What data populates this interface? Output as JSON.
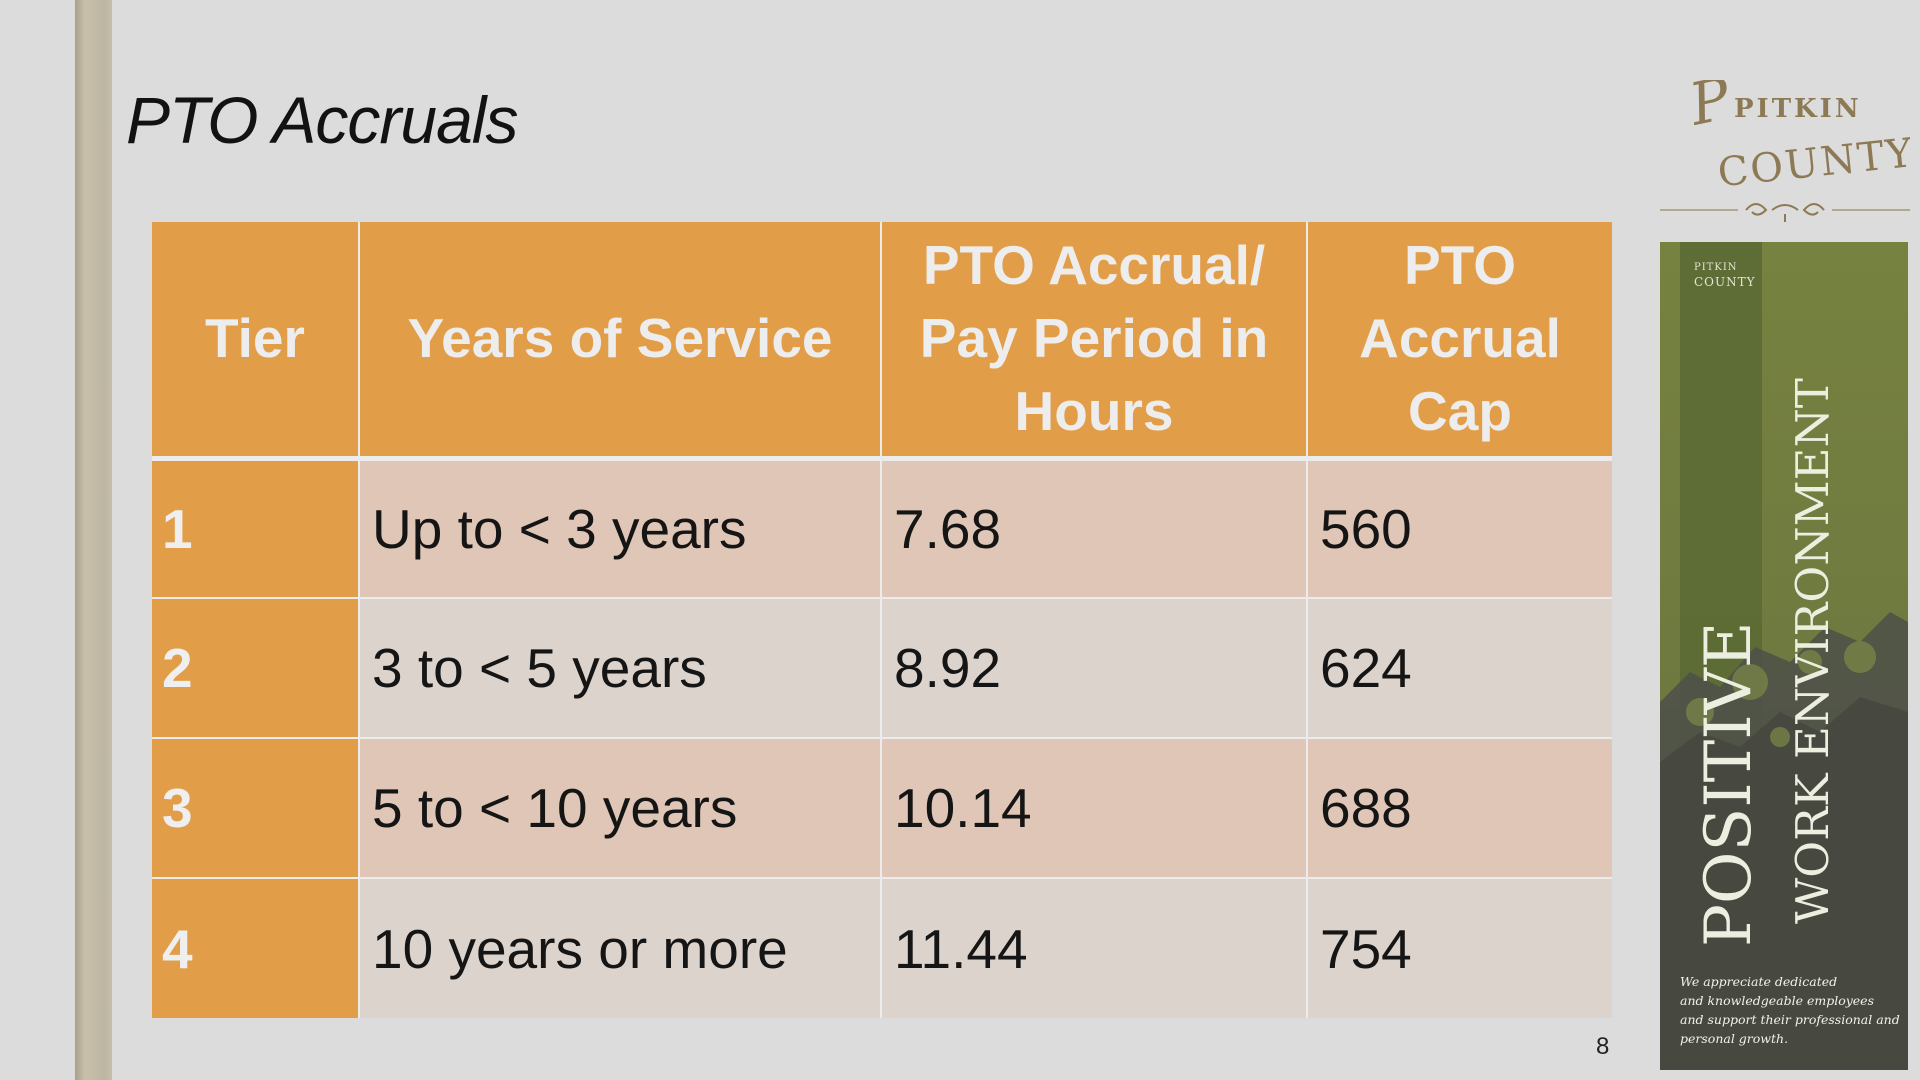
{
  "slide": {
    "title": "PTO Accruals",
    "page_number": "8"
  },
  "table": {
    "headers": [
      {
        "lines": [
          "Tier"
        ]
      },
      {
        "lines": [
          "Years of Service"
        ]
      },
      {
        "lines": [
          "PTO Accrual/",
          "Pay Period in",
          "Hours"
        ]
      },
      {
        "lines": [
          "PTO",
          "Accrual",
          "Cap"
        ]
      }
    ],
    "rows": [
      {
        "tier": "1",
        "years": "Up to < 3 years",
        "accrual": "7.68",
        "cap": "560"
      },
      {
        "tier": "2",
        "years": "3 to < 5 years",
        "accrual": "8.92",
        "cap": "624"
      },
      {
        "tier": "3",
        "years": "5 to < 10 years",
        "accrual": "10.14",
        "cap": "688"
      },
      {
        "tier": "4",
        "years": "10 years or more",
        "accrual": "11.44",
        "cap": "754"
      }
    ]
  },
  "logo": {
    "line1": "PITKIN",
    "line2": "COUNTY"
  },
  "banner": {
    "mini_logo_line1": "PITKIN",
    "mini_logo_line2": "COUNTY",
    "word1": "POSITIVE",
    "word2": "WORK ENVIRONMENT",
    "caption_lines": [
      "We appreciate dedicated",
      "and knowledgeable employees",
      "and support their professional and",
      "personal growth."
    ]
  },
  "colors": {
    "table_orange": "#e29d48",
    "row_odd": "#e0c6b6",
    "row_even": "#dcd3cd",
    "banner_green": "#6e7a3e",
    "logo_brown": "#8d7a55"
  }
}
